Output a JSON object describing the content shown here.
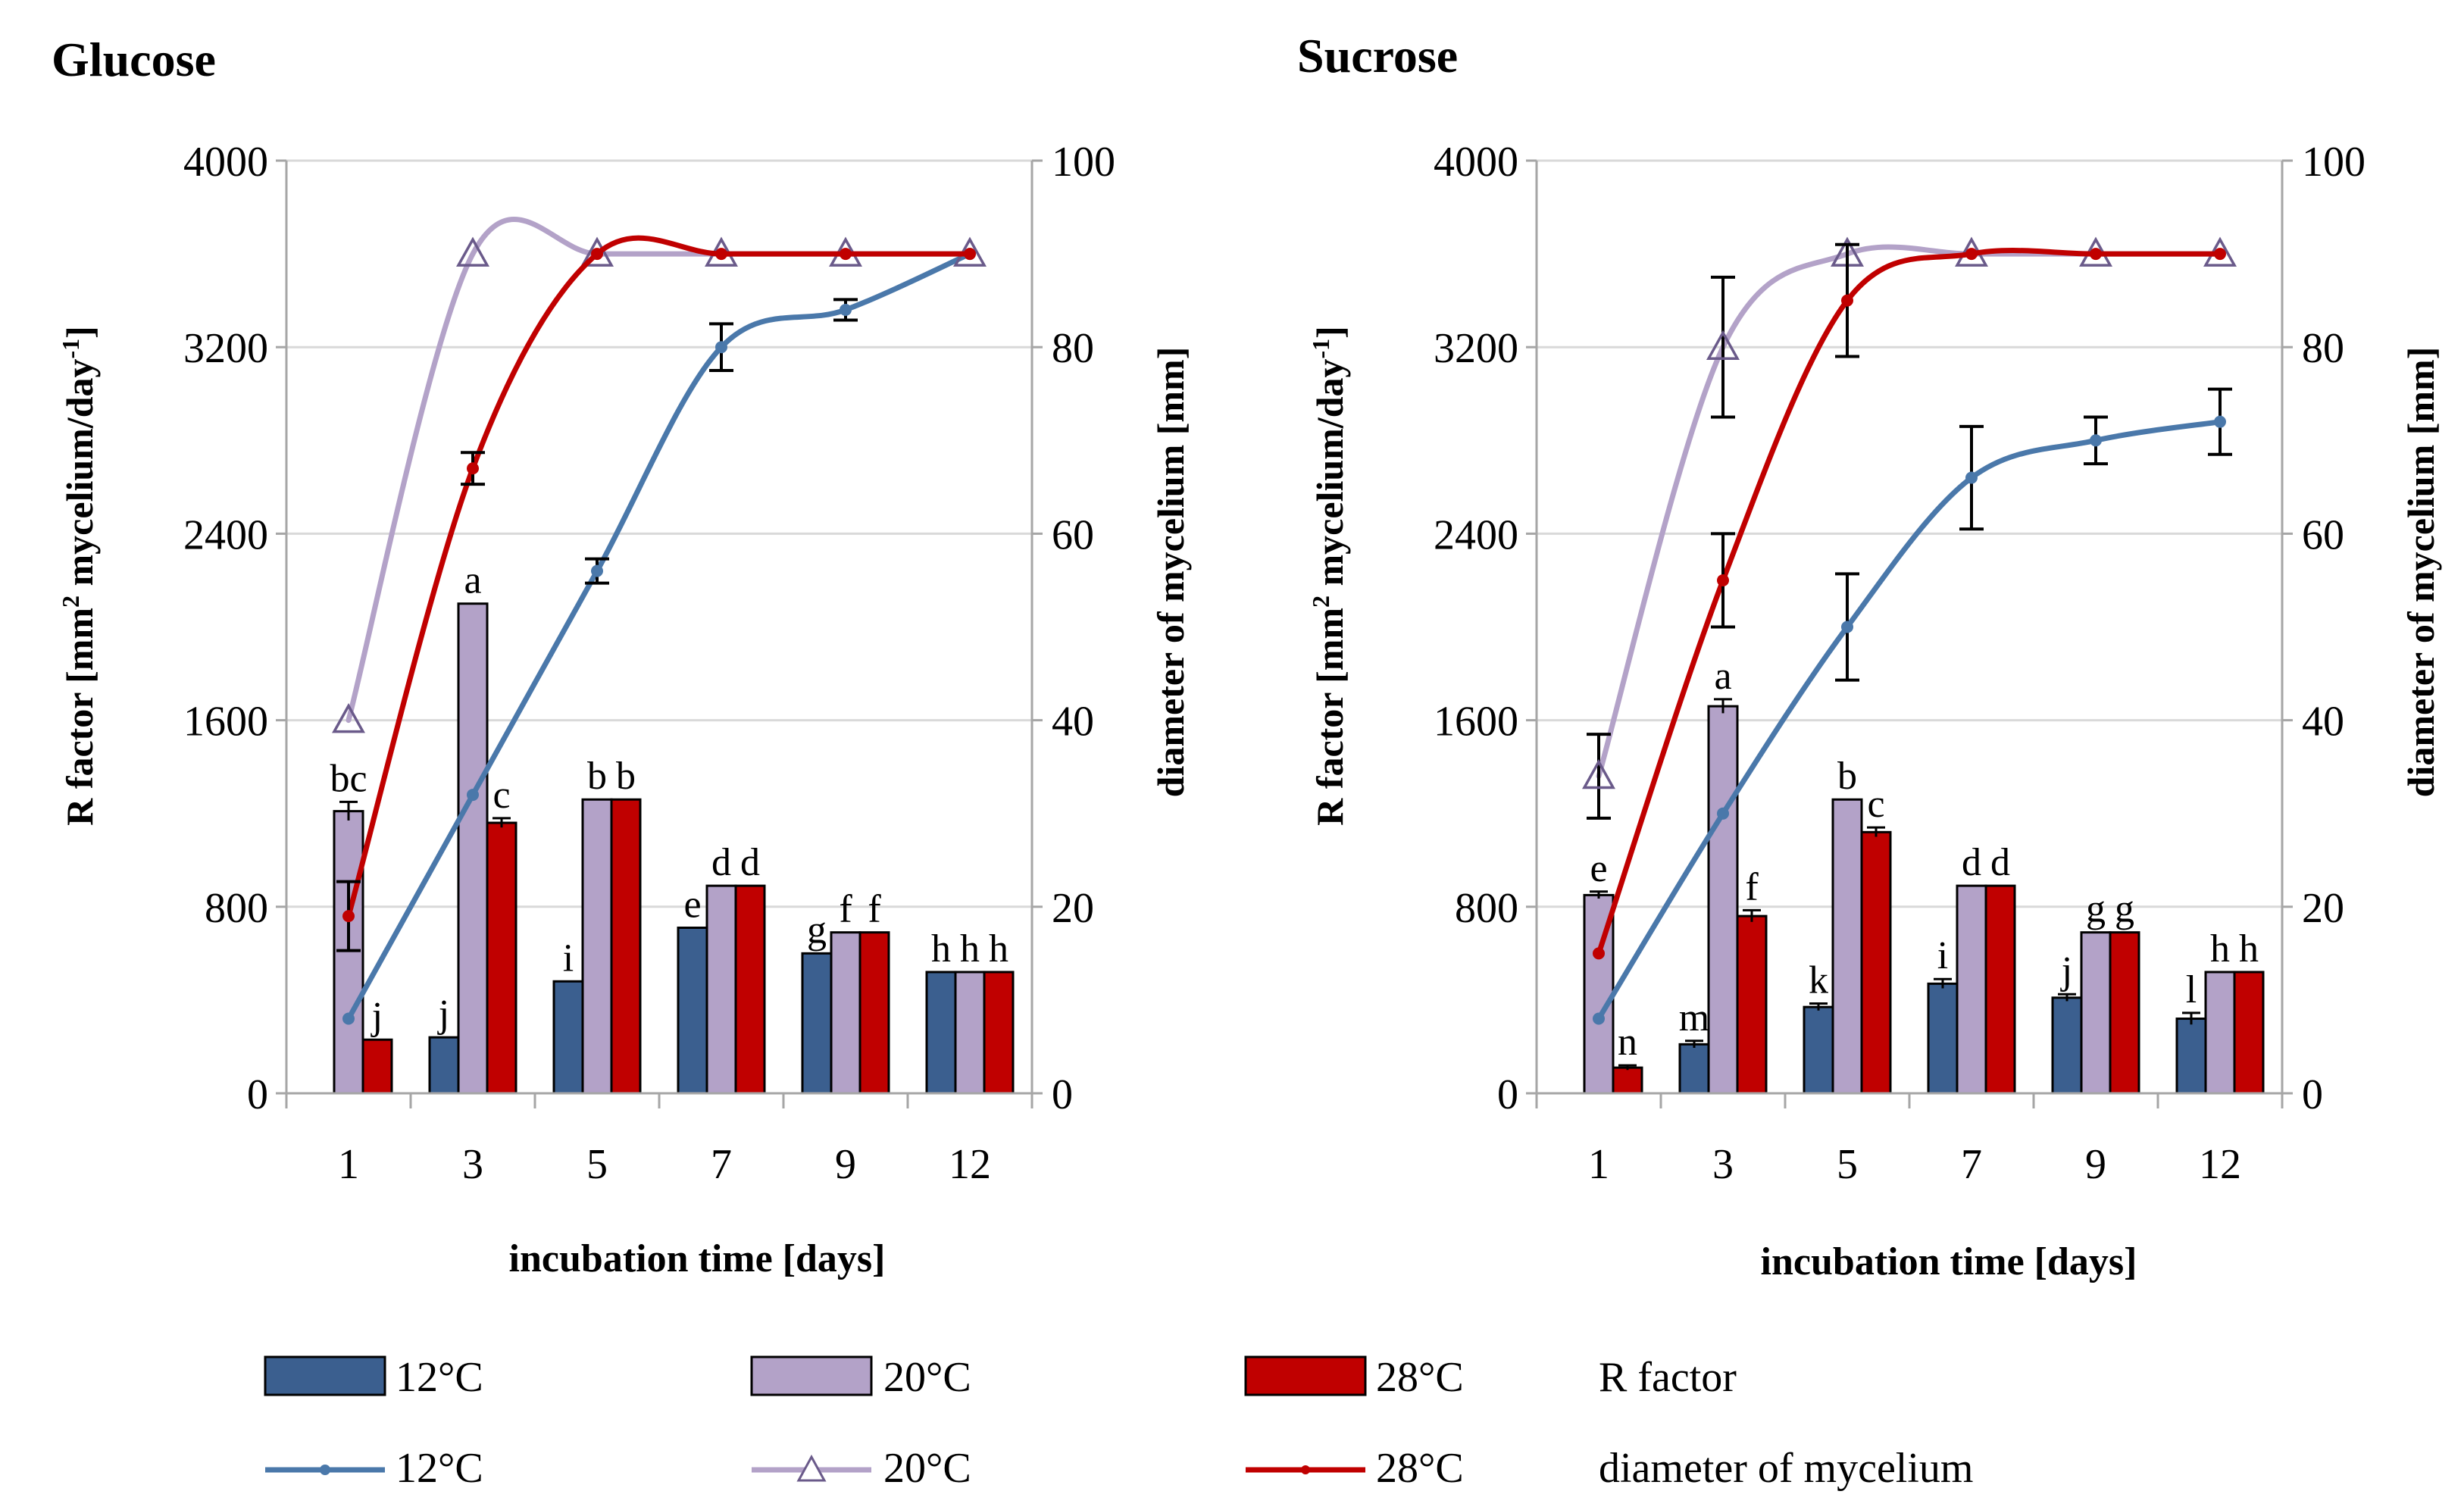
{
  "colors": {
    "c12": "#3B5F8F",
    "c20": "#B3A2C8",
    "c28": "#C00000",
    "line12": "#4A78AA",
    "line20": "#B3A2C8",
    "line28": "#C00000",
    "grid": "#D9D9D9",
    "axis": "#A6A6A6"
  },
  "legend": {
    "bar_12": "12°C",
    "bar_20": "20°C",
    "bar_28": "28°C",
    "bar_group": "R factor",
    "line_12": "12°C",
    "line_20": "20°C",
    "line_28": "28°C",
    "line_group": "diameter of mycelium"
  },
  "chart_data": [
    {
      "type": "bar+line",
      "title": "Glucose",
      "xlabel": "incubation time [days]",
      "ylabel_left": "R factor [mm² mycelium/day⁻¹]",
      "ylabel_left_main": "R factor [mm",
      "ylabel_left_sup1": "2",
      "ylabel_left_mid": " mycelium/day",
      "ylabel_left_sup2": "-1",
      "ylabel_left_end": "]",
      "ylabel_right": "diameter of mycelium [mm]",
      "categories": [
        "1",
        "3",
        "5",
        "7",
        "9",
        "12"
      ],
      "ylim_left": [
        0,
        4000
      ],
      "yticks_left": [
        "0",
        "800",
        "1600",
        "2400",
        "3200",
        "4000"
      ],
      "ylim_right": [
        0,
        100
      ],
      "yticks_right": [
        "0",
        "20",
        "40",
        "60",
        "80",
        "100"
      ],
      "bars": [
        {
          "name": "12°C",
          "values": [
            null,
            240,
            480,
            710,
            600,
            520
          ],
          "errors": [
            0,
            0,
            0,
            0,
            0,
            0
          ],
          "letters": [
            "",
            "j",
            "i",
            "e",
            "g",
            "h"
          ]
        },
        {
          "name": "20°C",
          "values": [
            1210,
            2100,
            1260,
            890,
            690,
            520
          ],
          "errors": [
            40,
            0,
            0,
            0,
            0,
            0
          ],
          "letters": [
            "bc",
            "a",
            "b",
            "d",
            "f",
            "h"
          ]
        },
        {
          "name": "28°C",
          "values": [
            230,
            1160,
            1260,
            890,
            690,
            520
          ],
          "errors": [
            0,
            20,
            0,
            0,
            0,
            0
          ],
          "letters": [
            "j",
            "c",
            "b",
            "d",
            "f",
            "h"
          ]
        }
      ],
      "series": [
        {
          "name": "12°C",
          "marker": "dot",
          "values": [
            8,
            32,
            56,
            80,
            84,
            90
          ],
          "errors": [
            0,
            0,
            1.3,
            2.5,
            1.1,
            0
          ]
        },
        {
          "name": "20°C",
          "marker": "triangle",
          "values": [
            40,
            90,
            90,
            90,
            90,
            90
          ],
          "errors": [
            0,
            0,
            0,
            0,
            0,
            0
          ]
        },
        {
          "name": "28°C",
          "marker": "dot",
          "values": [
            19,
            67,
            90,
            90,
            90,
            90
          ],
          "errors": [
            3.7,
            1.7,
            0,
            0,
            0,
            0
          ]
        }
      ]
    },
    {
      "type": "bar+line",
      "title": "Sucrose",
      "xlabel": "incubation time [days]",
      "ylabel_left": "R factor [mm² mycelium/day⁻¹]",
      "ylabel_left_main": "R factor [mm",
      "ylabel_left_sup1": "2",
      "ylabel_left_mid": " mycelium/day",
      "ylabel_left_sup2": "-1",
      "ylabel_left_end": "]",
      "ylabel_right": "diameter of mycelium [mm]",
      "categories": [
        "1",
        "3",
        "5",
        "7",
        "9",
        "12"
      ],
      "ylim_left": [
        0,
        4000
      ],
      "yticks_left": [
        "0",
        "800",
        "1600",
        "2400",
        "3200",
        "4000"
      ],
      "ylim_right": [
        0,
        100
      ],
      "yticks_right": [
        "0",
        "20",
        "40",
        "60",
        "80",
        "100"
      ],
      "bars": [
        {
          "name": "12°C",
          "values": [
            null,
            210,
            370,
            470,
            410,
            320
          ],
          "errors": [
            0,
            15,
            15,
            20,
            15,
            25
          ],
          "letters": [
            "",
            "m",
            "k",
            "i",
            "j",
            "l"
          ]
        },
        {
          "name": "20°C",
          "values": [
            850,
            1660,
            1260,
            890,
            690,
            520
          ],
          "errors": [
            15,
            30,
            0,
            0,
            0,
            0
          ],
          "letters": [
            "e",
            "a",
            "b",
            "d",
            "g",
            "h"
          ]
        },
        {
          "name": "28°C",
          "values": [
            110,
            760,
            1120,
            890,
            690,
            520
          ],
          "errors": [
            10,
            25,
            20,
            0,
            0,
            0
          ],
          "letters": [
            "n",
            "f",
            "c",
            "d",
            "g",
            "h"
          ]
        }
      ],
      "series": [
        {
          "name": "12°C",
          "marker": "dot",
          "values": [
            8,
            30,
            50,
            66,
            70,
            72
          ],
          "errors": [
            0,
            0,
            5.7,
            5.5,
            2.5,
            3.5
          ]
        },
        {
          "name": "20°C",
          "marker": "triangle",
          "values": [
            34,
            80,
            90,
            90,
            90,
            90
          ],
          "errors": [
            4.5,
            7.5,
            0,
            0,
            0,
            0
          ]
        },
        {
          "name": "28°C",
          "marker": "dot",
          "values": [
            15,
            55,
            85,
            90,
            90,
            90
          ],
          "errors": [
            0,
            5,
            6,
            0,
            0,
            0
          ]
        }
      ]
    }
  ]
}
